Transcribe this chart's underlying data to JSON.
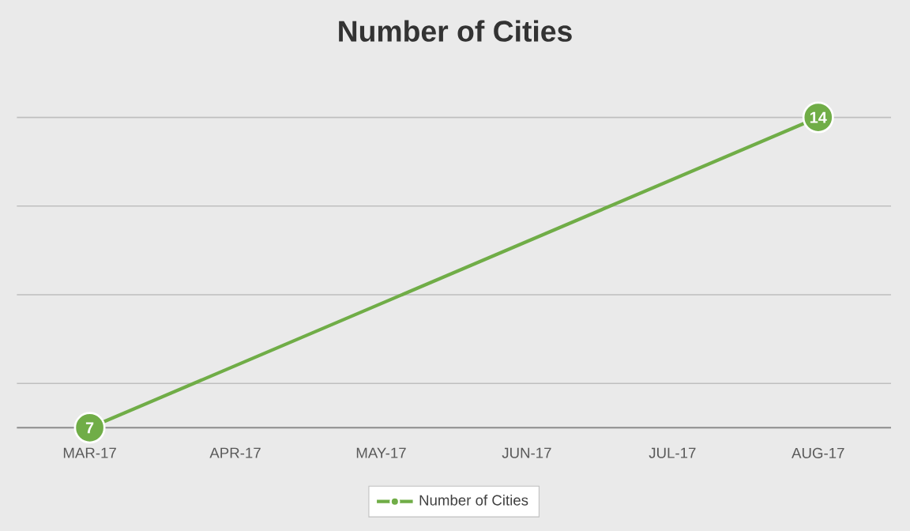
{
  "chart_data": {
    "type": "line",
    "title": "Number of Cities",
    "categories": [
      "MAR-17",
      "APR-17",
      "MAY-17",
      "JUN-17",
      "JUL-17",
      "AUG-17"
    ],
    "series": [
      {
        "name": "Number of Cities",
        "color": "#70ad47",
        "values": [
          7,
          null,
          null,
          null,
          null,
          14
        ]
      }
    ],
    "tick_labels": "x",
    "grid": "y",
    "legend": "bottom",
    "marker": "circle",
    "data_labels": true
  }
}
